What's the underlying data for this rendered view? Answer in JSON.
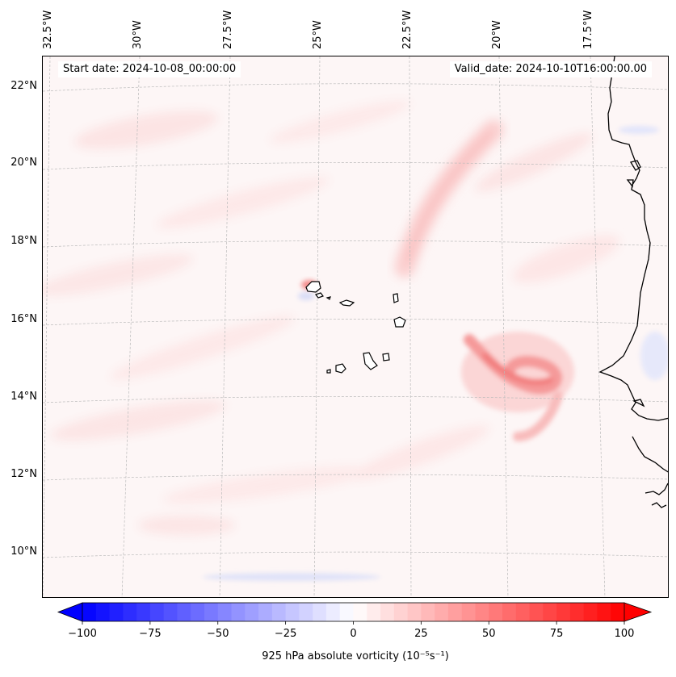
{
  "map": {
    "start_date": "Start date: 2024-10-08_00:00:00",
    "valid_date": "Valid_date: 2024-10-10T16:00:00.00",
    "lon_labels": [
      "32.5°W",
      "30°W",
      "27.5°W",
      "25°W",
      "22.5°W",
      "20°W",
      "17.5°W"
    ],
    "lat_labels": [
      "22°N",
      "20°N",
      "18°N",
      "16°N",
      "14°N",
      "12°N",
      "10°N"
    ],
    "lon_values": [
      -32.5,
      -30,
      -27.5,
      -25,
      -22.5,
      -20,
      -17.5
    ],
    "lat_values": [
      22,
      20,
      18,
      16,
      14,
      12,
      10
    ],
    "extent": {
      "lon_min": -32.5,
      "lon_max": -15.3,
      "lat_min": 8.9,
      "lat_max": 22.8
    }
  },
  "colorbar": {
    "label": "925 hPa absolute vorticity (10⁻⁵s⁻¹)",
    "ticks": [
      "−100",
      "−75",
      "−50",
      "−25",
      "0",
      "25",
      "50",
      "75",
      "100"
    ],
    "range": [
      -100,
      100
    ],
    "low_color": "#0000ff",
    "mid_color": "#ffffff",
    "high_color": "#ff0000"
  },
  "colors": {
    "background_field": "#fdf6f6",
    "coastline": "#000000",
    "gridline": "#bbbbbb"
  }
}
